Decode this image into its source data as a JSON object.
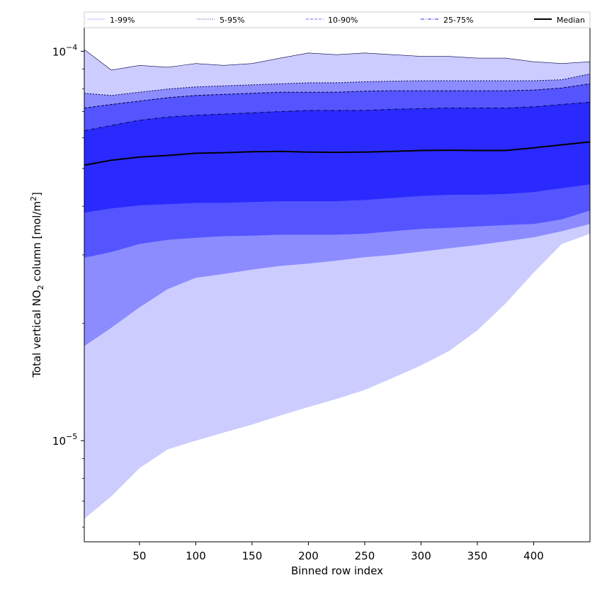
{
  "chart_data": {
    "type": "area",
    "xlabel": "Binned row index",
    "ylabel_main": "Total vertical NO",
    "ylabel_sub": "2",
    "ylabel_unit": " column [mol/m",
    "ylabel_sup": "2",
    "ylabel_end": "]",
    "xscale": "linear",
    "yscale": "log",
    "xlim": [
      1,
      450
    ],
    "ylim": [
      5.5e-06,
      0.000115
    ],
    "xticks": [
      {
        "value": 50,
        "label": "50"
      },
      {
        "value": 100,
        "label": "100"
      },
      {
        "value": 150,
        "label": "150"
      },
      {
        "value": 200,
        "label": "200"
      },
      {
        "value": 250,
        "label": "250"
      },
      {
        "value": 300,
        "label": "300"
      },
      {
        "value": 350,
        "label": "350"
      },
      {
        "value": 400,
        "label": "400"
      }
    ],
    "yticks_major": [
      {
        "value": 1e-05,
        "base": "10",
        "exp": "−5"
      },
      {
        "value": 0.0001,
        "base": "10",
        "exp": "−4"
      }
    ],
    "legend_position": "top-outside",
    "legend": [
      {
        "label": "1-99%",
        "style": "solid",
        "color": "#ccccff"
      },
      {
        "label": "5-95%",
        "style": "dotted",
        "color": "#8080c0"
      },
      {
        "label": "10-90%",
        "style": "dashed",
        "color": "#8888ff"
      },
      {
        "label": "25-75%",
        "style": "dashdot",
        "color": "#5555ff"
      },
      {
        "label": "Median",
        "style": "solid-thick",
        "color": "#000000"
      }
    ],
    "x": [
      1,
      25,
      50,
      75,
      100,
      125,
      150,
      175,
      200,
      225,
      250,
      275,
      300,
      325,
      350,
      375,
      400,
      425,
      450
    ],
    "bands": [
      {
        "name": "1-99%",
        "color": "#ccccff",
        "lower": [
          6.3e-06,
          7.2e-06,
          8.5e-06,
          9.5e-06,
          1e-05,
          1.05e-05,
          1.1e-05,
          1.16e-05,
          1.22e-05,
          1.28e-05,
          1.35e-05,
          1.45e-05,
          1.56e-05,
          1.7e-05,
          1.92e-05,
          2.25e-05,
          2.7e-05,
          3.2e-05,
          3.4e-05
        ],
        "upper": [
          0.000101,
          8.95e-05,
          9.2e-05,
          9.1e-05,
          9.3e-05,
          9.2e-05,
          9.3e-05,
          9.6e-05,
          9.9e-05,
          9.8e-05,
          9.9e-05,
          9.8e-05,
          9.7e-05,
          9.7e-05,
          9.6e-05,
          9.6e-05,
          9.4e-05,
          9.3e-05,
          9.4e-05
        ]
      },
      {
        "name": "5-95%",
        "color": "#8c8cff",
        "lower": [
          1.75e-05,
          1.95e-05,
          2.2e-05,
          2.45e-05,
          2.62e-05,
          2.68e-05,
          2.75e-05,
          2.81e-05,
          2.85e-05,
          2.9e-05,
          2.96e-05,
          3e-05,
          3.06e-05,
          3.12e-05,
          3.18e-05,
          3.25e-05,
          3.33e-05,
          3.45e-05,
          3.6e-05
        ],
        "upper": [
          7.8e-05,
          7.7e-05,
          7.85e-05,
          8e-05,
          8.1e-05,
          8.15e-05,
          8.2e-05,
          8.25e-05,
          8.3e-05,
          8.3e-05,
          8.35e-05,
          8.38e-05,
          8.4e-05,
          8.4e-05,
          8.4e-05,
          8.4e-05,
          8.4e-05,
          8.45e-05,
          8.75e-05
        ]
      },
      {
        "name": "10-90%",
        "color": "#5555ff",
        "lower": [
          2.95e-05,
          3.05e-05,
          3.2e-05,
          3.28e-05,
          3.32e-05,
          3.35e-05,
          3.36e-05,
          3.38e-05,
          3.38e-05,
          3.38e-05,
          3.4e-05,
          3.45e-05,
          3.5e-05,
          3.52e-05,
          3.55e-05,
          3.58e-05,
          3.6e-05,
          3.7e-05,
          3.9e-05
        ],
        "upper": [
          7.15e-05,
          7.3e-05,
          7.45e-05,
          7.6e-05,
          7.7e-05,
          7.75e-05,
          7.8e-05,
          7.85e-05,
          7.85e-05,
          7.85e-05,
          7.9e-05,
          7.92e-05,
          7.92e-05,
          7.92e-05,
          7.92e-05,
          7.92e-05,
          7.95e-05,
          8.05e-05,
          8.25e-05
        ]
      },
      {
        "name": "25-75%",
        "color": "#2a2aff",
        "lower": [
          3.85e-05,
          3.95e-05,
          4.02e-05,
          4.05e-05,
          4.08e-05,
          4.08e-05,
          4.1e-05,
          4.12e-05,
          4.12e-05,
          4.12e-05,
          4.15e-05,
          4.2e-05,
          4.25e-05,
          4.28e-05,
          4.28e-05,
          4.3e-05,
          4.35e-05,
          4.45e-05,
          4.55e-05
        ],
        "upper": [
          6.25e-05,
          6.45e-05,
          6.65e-05,
          6.78e-05,
          6.85e-05,
          6.9e-05,
          6.95e-05,
          7e-05,
          7.05e-05,
          7.05e-05,
          7.05e-05,
          7.1e-05,
          7.12e-05,
          7.15e-05,
          7.15e-05,
          7.15e-05,
          7.2e-05,
          7.3e-05,
          7.4e-05
        ]
      }
    ],
    "median": {
      "name": "Median",
      "color": "#000000",
      "values": [
        5.1e-05,
        5.25e-05,
        5.35e-05,
        5.4e-05,
        5.47e-05,
        5.49e-05,
        5.52e-05,
        5.53e-05,
        5.51e-05,
        5.5e-05,
        5.51e-05,
        5.53e-05,
        5.56e-05,
        5.57e-05,
        5.56e-05,
        5.56e-05,
        5.65e-05,
        5.75e-05,
        5.85e-05
      ]
    }
  }
}
